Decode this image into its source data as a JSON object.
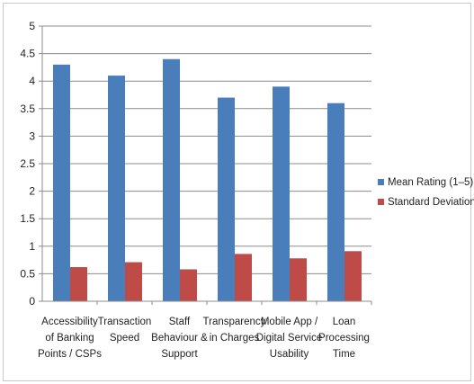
{
  "chart_data": {
    "type": "bar",
    "categories": [
      [
        "Accessibility",
        "of Banking",
        "Points / CSPs"
      ],
      [
        "Transaction",
        "Speed"
      ],
      [
        "Staff",
        "Behaviour &",
        "Support"
      ],
      [
        "Transparency",
        "in Charges"
      ],
      [
        "Mobile App /",
        "Digital Service",
        "Usability"
      ],
      [
        "Loan",
        "Processing",
        "Time"
      ]
    ],
    "series": [
      {
        "name": "Mean Rating (1–5)",
        "color": "#4a7ebb",
        "values": [
          4.3,
          4.1,
          4.4,
          3.7,
          3.9,
          3.6
        ]
      },
      {
        "name": "Standard Deviation",
        "color": "#be4b48",
        "values": [
          0.62,
          0.71,
          0.58,
          0.86,
          0.78,
          0.91
        ]
      }
    ],
    "yticks": [
      "0",
      "0.5",
      "1",
      "1.5",
      "2",
      "2.5",
      "3",
      "3.5",
      "4",
      "4.5",
      "5"
    ],
    "ylim": [
      0,
      5
    ],
    "grid": true,
    "legend": "right"
  }
}
